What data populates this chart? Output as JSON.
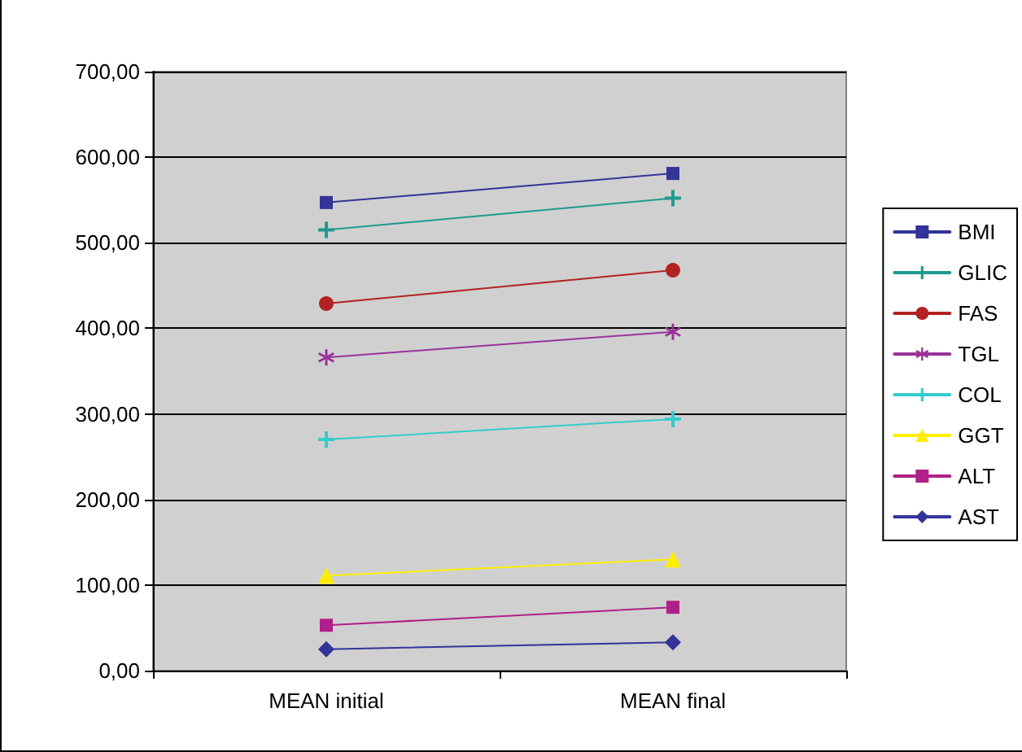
{
  "chart_data": {
    "type": "line",
    "categories": [
      "MEAN initial",
      "MEAN final"
    ],
    "series": [
      {
        "name": "BMI",
        "color": "#333399",
        "marker": "square",
        "values": [
          547,
          581
        ]
      },
      {
        "name": "GLIC",
        "color": "#1f9a8f",
        "marker": "cross",
        "values": [
          515,
          552
        ]
      },
      {
        "name": "FAS",
        "color": "#b22222",
        "marker": "circle",
        "values": [
          429,
          468
        ]
      },
      {
        "name": "TGL",
        "color": "#993399",
        "marker": "star",
        "values": [
          366,
          396
        ]
      },
      {
        "name": "COL",
        "color": "#33cccc",
        "marker": "cross",
        "values": [
          270,
          294
        ]
      },
      {
        "name": "GGT",
        "color": "#ffee00",
        "marker": "triangle",
        "values": [
          111,
          130
        ]
      },
      {
        "name": "ALT",
        "color": "#b0208a",
        "marker": "square",
        "values": [
          53,
          74
        ]
      },
      {
        "name": "AST",
        "color": "#333399",
        "marker": "diamond",
        "values": [
          25,
          33
        ]
      }
    ],
    "ylim": [
      0,
      700
    ],
    "yticks": [
      {
        "value": 0,
        "label": "0,00"
      },
      {
        "value": 100,
        "label": "100,00"
      },
      {
        "value": 200,
        "label": "200,00"
      },
      {
        "value": 300,
        "label": "300,00"
      },
      {
        "value": 400,
        "label": "400,00"
      },
      {
        "value": 500,
        "label": "500,00"
      },
      {
        "value": 600,
        "label": "600,00"
      },
      {
        "value": 700,
        "label": "700,00"
      }
    ],
    "grid": "y",
    "legend": "right",
    "line_style": "solid"
  }
}
